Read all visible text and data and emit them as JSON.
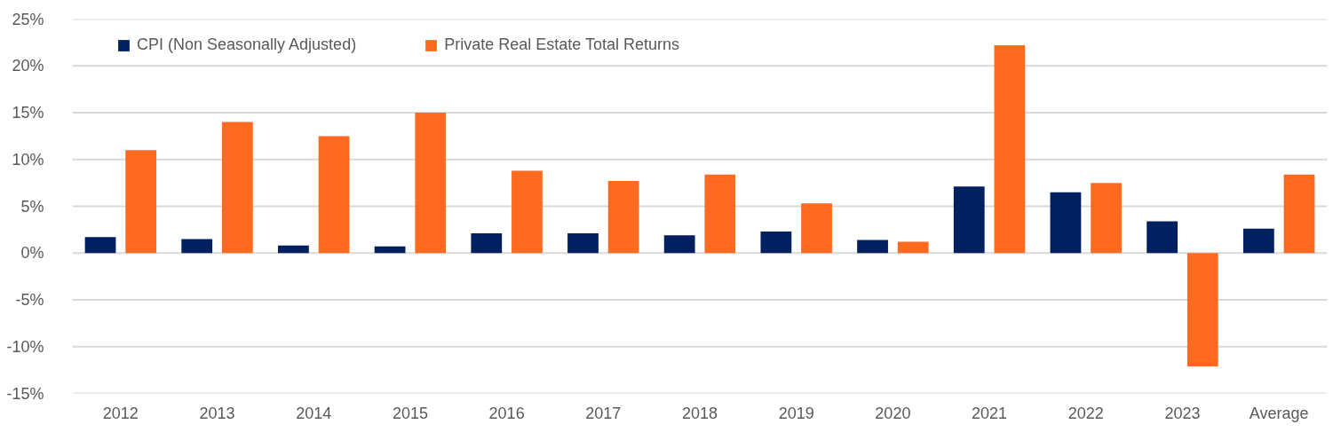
{
  "chart_data": {
    "type": "bar",
    "categories": [
      "2012",
      "2013",
      "2014",
      "2015",
      "2016",
      "2017",
      "2018",
      "2019",
      "2020",
      "2021",
      "2022",
      "2023",
      "Average"
    ],
    "series": [
      {
        "name": "CPI (Non Seasonally Adjusted)",
        "color": "#002060",
        "values": [
          1.7,
          1.5,
          0.8,
          0.7,
          2.1,
          2.1,
          1.9,
          2.3,
          1.4,
          7.1,
          6.5,
          3.4,
          2.6
        ]
      },
      {
        "name": "Private Real Estate Total Returns",
        "color": "#ff6a21",
        "values": [
          11.0,
          14.0,
          12.5,
          15.0,
          8.8,
          7.7,
          8.4,
          5.3,
          1.2,
          22.2,
          7.5,
          -12.1,
          8.4
        ]
      }
    ],
    "ylim": [
      -15,
      25
    ],
    "yticks": [
      {
        "value": -15,
        "label": "-15%"
      },
      {
        "value": -10,
        "label": "-10%"
      },
      {
        "value": -5,
        "label": "-5%"
      },
      {
        "value": 0,
        "label": "0%"
      },
      {
        "value": 5,
        "label": "5%"
      },
      {
        "value": 10,
        "label": "10%"
      },
      {
        "value": 15,
        "label": "15%"
      },
      {
        "value": 20,
        "label": "20%"
      },
      {
        "value": 25,
        "label": "25%"
      }
    ],
    "grid": "y",
    "legend": "top left"
  }
}
